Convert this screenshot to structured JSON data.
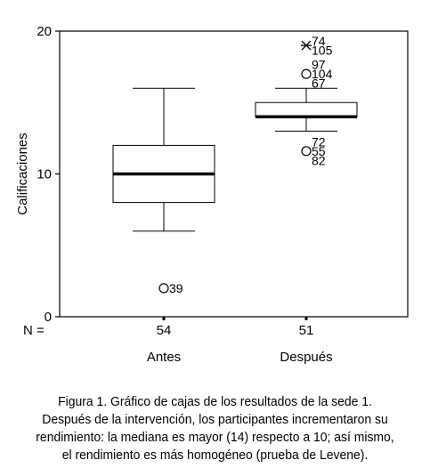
{
  "chart_data": {
    "type": "boxplot",
    "ylabel": "Calificaciones",
    "ylim": [
      0,
      20
    ],
    "yticks": [
      0,
      10,
      20
    ],
    "n_prefix": "N =",
    "groups": [
      {
        "label": "Antes",
        "n": "54",
        "whisker_low": 6,
        "q1": 8,
        "median": 10,
        "q3": 12,
        "whisker_high": 16,
        "outliers": [
          {
            "value": 2,
            "labels": [
              "39"
            ],
            "marker": "circle"
          }
        ]
      },
      {
        "label": "Después",
        "n": "51",
        "whisker_low": 13,
        "q1": 14,
        "median": 14,
        "q3": 15,
        "whisker_high": 16,
        "outliers": [
          {
            "value": 19,
            "labels": [
              "74",
              "105"
            ],
            "marker": "star"
          },
          {
            "value": 17,
            "labels": [
              "97",
              "104",
              "67"
            ],
            "marker": "circle"
          },
          {
            "value": 11.6,
            "labels": [
              "72",
              "55",
              "82"
            ],
            "marker": "circle"
          }
        ]
      }
    ]
  },
  "caption": {
    "lines": [
      "Figura 1. Gráfico de cajas de los resultados de la sede 1.",
      "Después de la intervención, los participantes incrementaron su",
      "rendimiento: la mediana es mayor (14) respecto a 10; así mismo,",
      "el rendimiento es más homogéneo (prueba de Levene)."
    ]
  }
}
